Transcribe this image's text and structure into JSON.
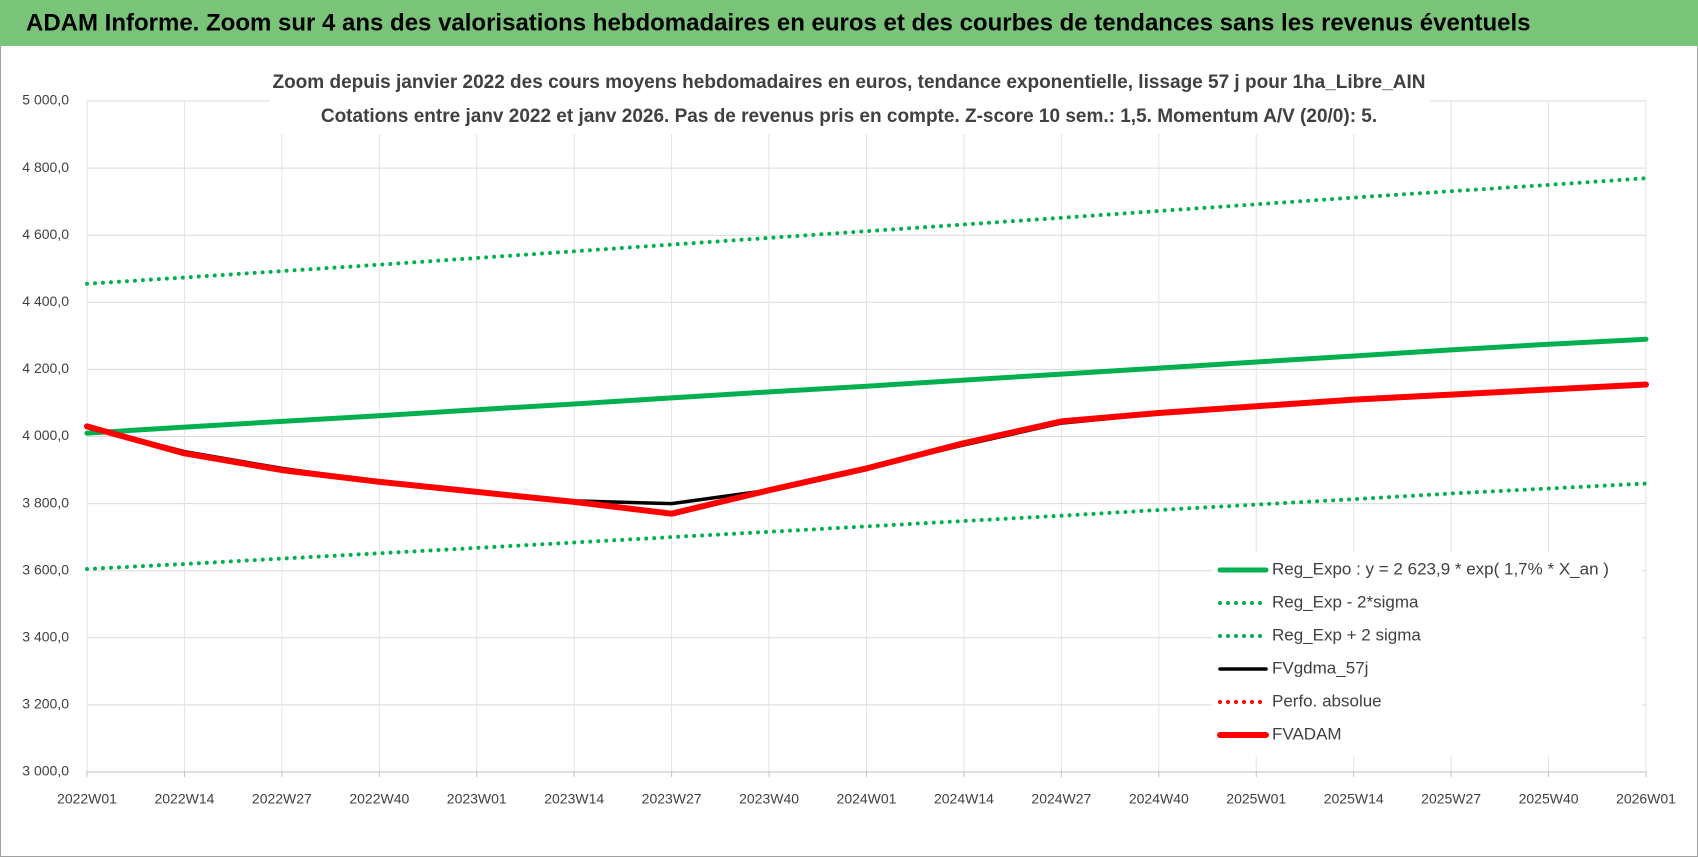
{
  "header": {
    "title": "ADAM Informe. Zoom sur 4 ans des valorisations hebdomadaires en euros et des courbes de tendances sans les revenus éventuels"
  },
  "chart_data": {
    "type": "line",
    "title": "Zoom depuis janvier 2022 des cours moyens hebdomadaires en euros, tendance exponentielle, lissage 57 j pour 1ha_Libre_AIN",
    "subtitle": "Cotations entre janv 2022 et janv 2026. Pas de revenus pris en compte. Z-score 10 sem.: 1,5. Momentum A/V (20/0): 5.",
    "categories": [
      "2022W01",
      "2022W14",
      "2022W27",
      "2022W40",
      "2023W01",
      "2023W14",
      "2023W27",
      "2023W40",
      "2024W01",
      "2024W14",
      "2024W27",
      "2024W40",
      "2025W01",
      "2025W14",
      "2025W27",
      "2025W40",
      "2026W01"
    ],
    "ylim": [
      3000,
      5000
    ],
    "yticks": [
      {
        "value": 3000,
        "label": "3 000,0"
      },
      {
        "value": 3200,
        "label": "3 200,0"
      },
      {
        "value": 3400,
        "label": "3 400,0"
      },
      {
        "value": 3600,
        "label": "3 600,0"
      },
      {
        "value": 3800,
        "label": "3 800,0"
      },
      {
        "value": 4000,
        "label": "4 000,0"
      },
      {
        "value": 4200,
        "label": "4 200,0"
      },
      {
        "value": 4400,
        "label": "4 400,0"
      },
      {
        "value": 4600,
        "label": "4 600,0"
      },
      {
        "value": 4800,
        "label": "4 800,0"
      },
      {
        "value": 5000,
        "label": "5 000,0"
      }
    ],
    "grid": true,
    "legend": "lower right",
    "series": [
      {
        "name": "Reg_Expo : y = 2 623,9 * exp( 1,7% *  X_an )",
        "color": "#00b050",
        "dash": "solid",
        "values": [
          4010,
          4028,
          4045,
          4062,
          4080,
          4097,
          4115,
          4133,
          4150,
          4168,
          4186,
          4204,
          4222,
          4240,
          4258,
          4275,
          4290
        ]
      },
      {
        "name": "Reg_Exp - 2*sigma",
        "color": "#00b050",
        "dash": "dotted",
        "values": [
          3605,
          3620,
          3636,
          3652,
          3668,
          3684,
          3700,
          3716,
          3732,
          3748,
          3764,
          3781,
          3797,
          3813,
          3830,
          3845,
          3860
        ]
      },
      {
        "name": "Reg_Exp + 2 sigma",
        "color": "#00b050",
        "dash": "dotted",
        "values": [
          4455,
          4474,
          4493,
          4512,
          4532,
          4552,
          4572,
          4592,
          4612,
          4632,
          4652,
          4672,
          4692,
          4712,
          4731,
          4750,
          4770
        ]
      },
      {
        "name": "FVgdma_57j",
        "color": "#000000",
        "dash": "solid",
        "values": [
          4030,
          3955,
          3905,
          3865,
          3835,
          3808,
          3800,
          3840,
          3905,
          3975,
          4040,
          4068,
          4090,
          4110,
          4125,
          4140,
          4155
        ]
      },
      {
        "name": "Perfo. absolue",
        "color": "#ff0000",
        "dash": "dotted",
        "values": [
          null,
          null,
          null,
          null,
          null,
          null,
          null,
          null,
          null,
          null,
          null,
          null,
          null,
          null,
          null,
          null,
          null
        ]
      },
      {
        "name": "FVADAM",
        "color": "#ff0000",
        "dash": "solid",
        "values": [
          4030,
          3950,
          3900,
          3865,
          3835,
          3805,
          3770,
          3840,
          3905,
          3980,
          4045,
          4070,
          4090,
          4110,
          4125,
          4140,
          4155
        ]
      }
    ]
  }
}
